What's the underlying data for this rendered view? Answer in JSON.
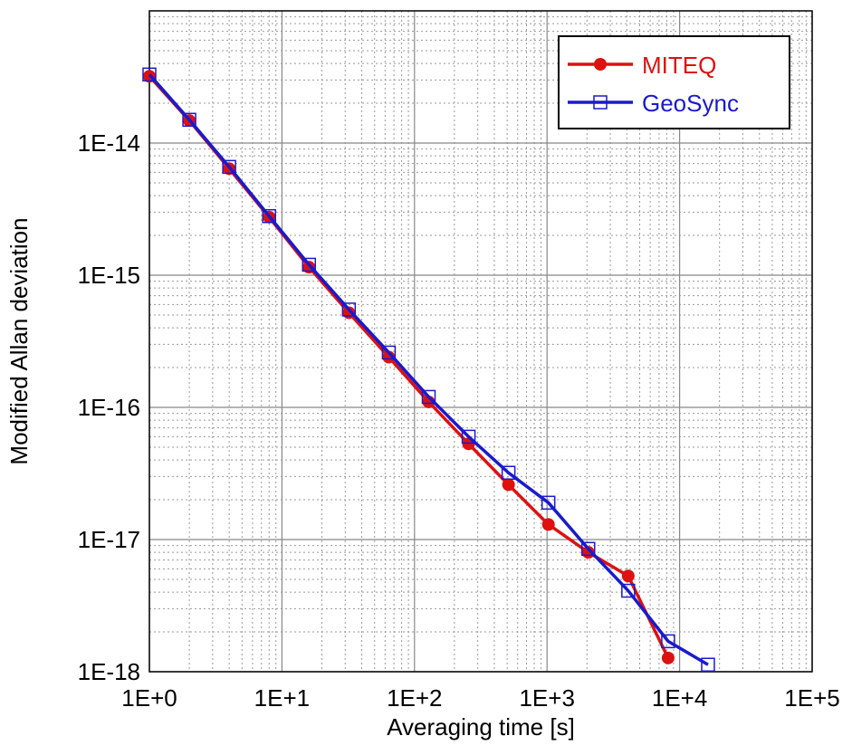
{
  "chart_data": {
    "type": "line",
    "xlabel": "Averaging time [s]",
    "ylabel": "Modified Allan deviation",
    "x": [
      1,
      2,
      4,
      8,
      16,
      32,
      64,
      128,
      256,
      512,
      1024,
      2048,
      4096,
      8192,
      16384
    ],
    "series": [
      {
        "name": "MITEQ",
        "color": "#dd1111",
        "marker": "circle",
        "values": [
          3.2e-14,
          1.48e-14,
          6.4e-15,
          2.75e-15,
          1.15e-15,
          5.2e-16,
          2.4e-16,
          1.1e-16,
          5.3e-17,
          2.6e-17,
          1.3e-17,
          8e-18,
          5.3e-18,
          1.27e-18,
          null
        ]
      },
      {
        "name": "GeoSync",
        "color": "#1a1acc",
        "marker": "square",
        "values": [
          3.3e-14,
          1.5e-14,
          6.6e-15,
          2.8e-15,
          1.2e-15,
          5.5e-16,
          2.6e-16,
          1.2e-16,
          6e-17,
          3.2e-17,
          1.9e-17,
          8.5e-18,
          4.1e-18,
          1.7e-18,
          1.13e-18
        ]
      }
    ],
    "xlog": true,
    "ylog": true,
    "xlim": [
      1,
      100000
    ],
    "ylim": [
      1e-18,
      1e-13
    ],
    "xticks": [
      {
        "value": 1,
        "label": "1E+0"
      },
      {
        "value": 10,
        "label": "1E+1"
      },
      {
        "value": 100,
        "label": "1E+2"
      },
      {
        "value": 1000,
        "label": "1E+3"
      },
      {
        "value": 10000,
        "label": "1E+4"
      },
      {
        "value": 100000,
        "label": "1E+5"
      }
    ],
    "yticks": [
      {
        "value": 1e-18,
        "label": "1E-18"
      },
      {
        "value": 1e-17,
        "label": "1E-17"
      },
      {
        "value": 1e-16,
        "label": "1E-16"
      },
      {
        "value": 1e-15,
        "label": "1E-15"
      },
      {
        "value": 1e-14,
        "label": "1E-14"
      }
    ],
    "grid": true,
    "legend": "upper right"
  }
}
